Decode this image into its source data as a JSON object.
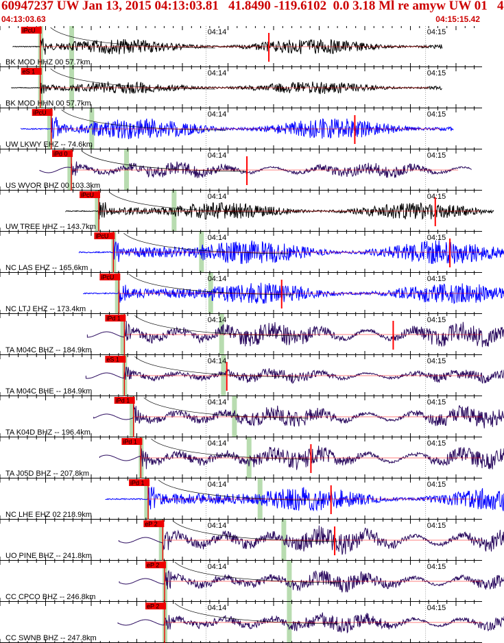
{
  "header": {
    "title": "60947237 UW Jan 13, 2015 04:13:03.81   41.8490 -119.6102  0.0 3.18 Ml re amyw UW 01   4",
    "start_time": "04:13:03.63",
    "end_time": "04:15:15.42"
  },
  "colors": {
    "header_text": "#cc0000",
    "pick_flag": "#ee0000",
    "trace_black": "#000000",
    "trace_blue": "#0000ff",
    "trace_purple": "#2a0a5e",
    "travel_time_curve": "#000000",
    "phase_window": "#b8dcb0",
    "red_marker": "#ff0000"
  },
  "chart_data": {
    "type": "seismogram",
    "time_start": "04:13:03.63",
    "time_end": "04:15:15.42",
    "tick_labels": [
      "04:14",
      "04:15"
    ],
    "traces": [
      {
        "label": "BK MOD HHZ 00 57.7km",
        "pick": "iPcU",
        "color": "black",
        "p_sec": 11,
        "s_sec": 19.5,
        "signal_end_sec": 121,
        "amp": 0.55,
        "red_marks_sec": [
          73.5
        ],
        "green_sec": [
          11,
          19.5
        ]
      },
      {
        "label": "BK MOD HHN 00 57.7km",
        "pick": "eS 1",
        "color": "black",
        "p_sec": 11,
        "s_sec": 19.5,
        "signal_end_sec": 121,
        "amp": 0.45,
        "red_marks_sec": [],
        "green_sec": [
          11,
          19.5
        ]
      },
      {
        "label": "UW LKWY EHZ -- 74.6km",
        "pick": "iPcU",
        "color": "blue",
        "p_sec": 14,
        "s_sec": 25,
        "signal_end_sec": 124,
        "amp": 0.75,
        "red_marks_sec": [
          97
        ],
        "green_sec": [
          13.5,
          25
        ]
      },
      {
        "label": "US WVOR BHZ 00 103.3km",
        "pick": "iPd 0",
        "color": "purple",
        "p_sec": 19.5,
        "s_sec": 34.5,
        "signal_end_sec": 129,
        "amp": 0.45,
        "red_marks_sec": [
          67.5
        ],
        "green_sec": [
          19,
          34.5
        ]
      },
      {
        "label": "UW TREE HHZ -- 143.7km",
        "pick": "iPcU",
        "color": "black",
        "p_sec": 27,
        "s_sec": 47.5,
        "signal_end_sec": 135,
        "amp": 0.6,
        "red_marks_sec": [
          119
        ],
        "green_sec": [
          26.5,
          47.5
        ]
      },
      {
        "label": "NC LAS EHZ -- 165.6km",
        "pick": "iPcU",
        "color": "blue",
        "p_sec": 31,
        "s_sec": 55,
        "signal_end_sec": 139,
        "amp": 0.85,
        "red_marks_sec": [
          123
        ],
        "green_sec": [
          31,
          55
        ]
      },
      {
        "label": "NC LTJ EHZ -- 173.4km",
        "pick": "iPcU",
        "color": "blue",
        "p_sec": 32.5,
        "s_sec": 57.5,
        "signal_end_sec": 141,
        "amp": 0.75,
        "red_marks_sec": [
          77
        ],
        "green_sec": [
          32,
          57.5
        ]
      },
      {
        "label": "TA M04C BHZ -- 184.9km",
        "pick": "iPd 1",
        "color": "purple",
        "p_sec": 34,
        "s_sec": 60.5,
        "signal_end_sec": 143,
        "amp": 0.7,
        "red_marks_sec": [
          107.5
        ],
        "green_sec": [
          33.5,
          60.5
        ]
      },
      {
        "label": "TA M04C BHE -- 184.9km",
        "pick": "eS 1",
        "color": "purple",
        "p_sec": 34,
        "s_sec": 62,
        "signal_end_sec": 143,
        "amp": 0.4,
        "red_marks_sec": [
          62
        ],
        "green_sec": [
          34,
          61
        ]
      },
      {
        "label": "TA K04D BHZ -- 196.4km",
        "pick": "iPd 1",
        "color": "purple",
        "p_sec": 36.5,
        "s_sec": 64,
        "signal_end_sec": 145,
        "amp": 0.6,
        "red_marks_sec": [],
        "green_sec": [
          36,
          64
        ]
      },
      {
        "label": "TA J05D BHZ -- 207.8km",
        "pick": "iPd 1",
        "color": "purple",
        "p_sec": 38.5,
        "s_sec": 68,
        "signal_end_sec": 146,
        "amp": 0.65,
        "red_marks_sec": [
          85
        ],
        "green_sec": [
          38.5,
          68
        ]
      },
      {
        "label": "NC LHE EHZ 02 218.9km",
        "pick": "iPd 1",
        "color": "blue",
        "p_sec": 40.5,
        "s_sec": 71,
        "signal_end_sec": 148,
        "amp": 0.85,
        "red_marks_sec": [
          90.5
        ],
        "green_sec": [
          40,
          71
        ]
      },
      {
        "label": "UO PINE BHZ -- 241.8km",
        "pick": "eP 2",
        "color": "purple",
        "p_sec": 44.5,
        "s_sec": 77.5,
        "signal_end_sec": 152,
        "amp": 0.75,
        "red_marks_sec": [
          91.5
        ],
        "green_sec": [
          44,
          77.5
        ]
      },
      {
        "label": "CC CPCO BHZ -- 246.8km",
        "pick": "eP 2",
        "color": "purple",
        "p_sec": 45,
        "s_sec": 79,
        "signal_end_sec": 152,
        "amp": 0.6,
        "red_marks_sec": [],
        "green_sec": [
          45,
          79
        ]
      },
      {
        "label": "CC SWNB BHZ -- 247.8km",
        "pick": "eP 2",
        "color": "purple",
        "p_sec": 45,
        "s_sec": 79,
        "signal_end_sec": 152,
        "amp": 0.55,
        "red_marks_sec": [],
        "green_sec": [
          45,
          79
        ]
      }
    ]
  }
}
